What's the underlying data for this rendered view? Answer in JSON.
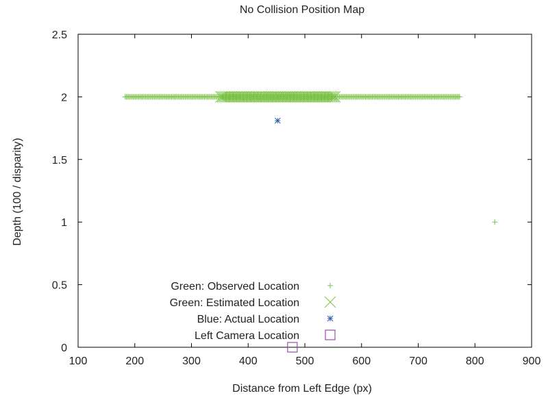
{
  "chart_data": {
    "type": "scatter",
    "title": "No Collision Position Map",
    "xlabel": "Distance from Left Edge (px)",
    "ylabel": "Depth (100 / disparity)",
    "xlim": [
      100,
      900
    ],
    "ylim": [
      0,
      2.5
    ],
    "xticks": [
      "100",
      "200",
      "300",
      "400",
      "500",
      "600",
      "700",
      "800",
      "900"
    ],
    "yticks": [
      "0",
      "0.5",
      "1",
      "1.5",
      "2",
      "2.5"
    ],
    "grid": false,
    "legend_position": "bottom-left",
    "series": [
      {
        "name": "Green: Observed Location",
        "marker": "plus",
        "color": "#7ac143",
        "points": {
          "x_range": [
            183,
            773
          ],
          "x_step": 2,
          "y": 2,
          "extra": [
            [
              835,
              1
            ]
          ]
        }
      },
      {
        "name": "Green: Estimated Location",
        "marker": "x",
        "color": "#7ac143",
        "points": {
          "x_range": [
            352,
            553
          ],
          "x_step": 3,
          "y": 2
        }
      },
      {
        "name": "Blue: Actual Location",
        "marker": "star",
        "color": "#2a5caa",
        "points": [
          [
            452,
            1.81
          ]
        ]
      },
      {
        "name": "Left Camera Location",
        "marker": "square",
        "color": "#9b4dab",
        "points": [
          [
            478,
            0
          ]
        ]
      }
    ]
  }
}
